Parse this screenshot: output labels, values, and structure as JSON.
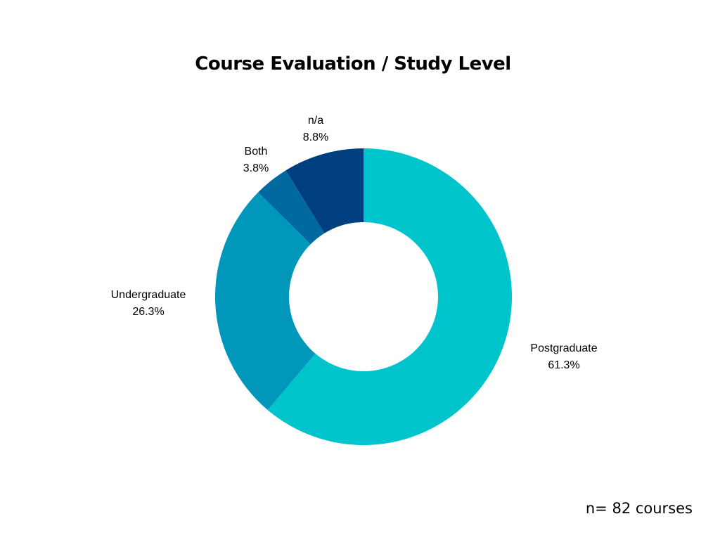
{
  "chart_data": {
    "type": "pie",
    "title": "Course Evaluation / Study Level",
    "donut": true,
    "labels": [
      "Postgraduate",
      "Undergraduate",
      "Both",
      "n/a"
    ],
    "values": [
      61.3,
      26.3,
      3.8,
      8.8
    ],
    "value_labels": [
      "61.3%",
      "26.3%",
      "3.8%",
      "8.8%"
    ],
    "colors": [
      "#00c4cc",
      "#0097bb",
      "#00699f",
      "#003f7f"
    ],
    "start": "12 o'clock",
    "direction": "clockwise"
  },
  "footnote": "n= 82 courses"
}
